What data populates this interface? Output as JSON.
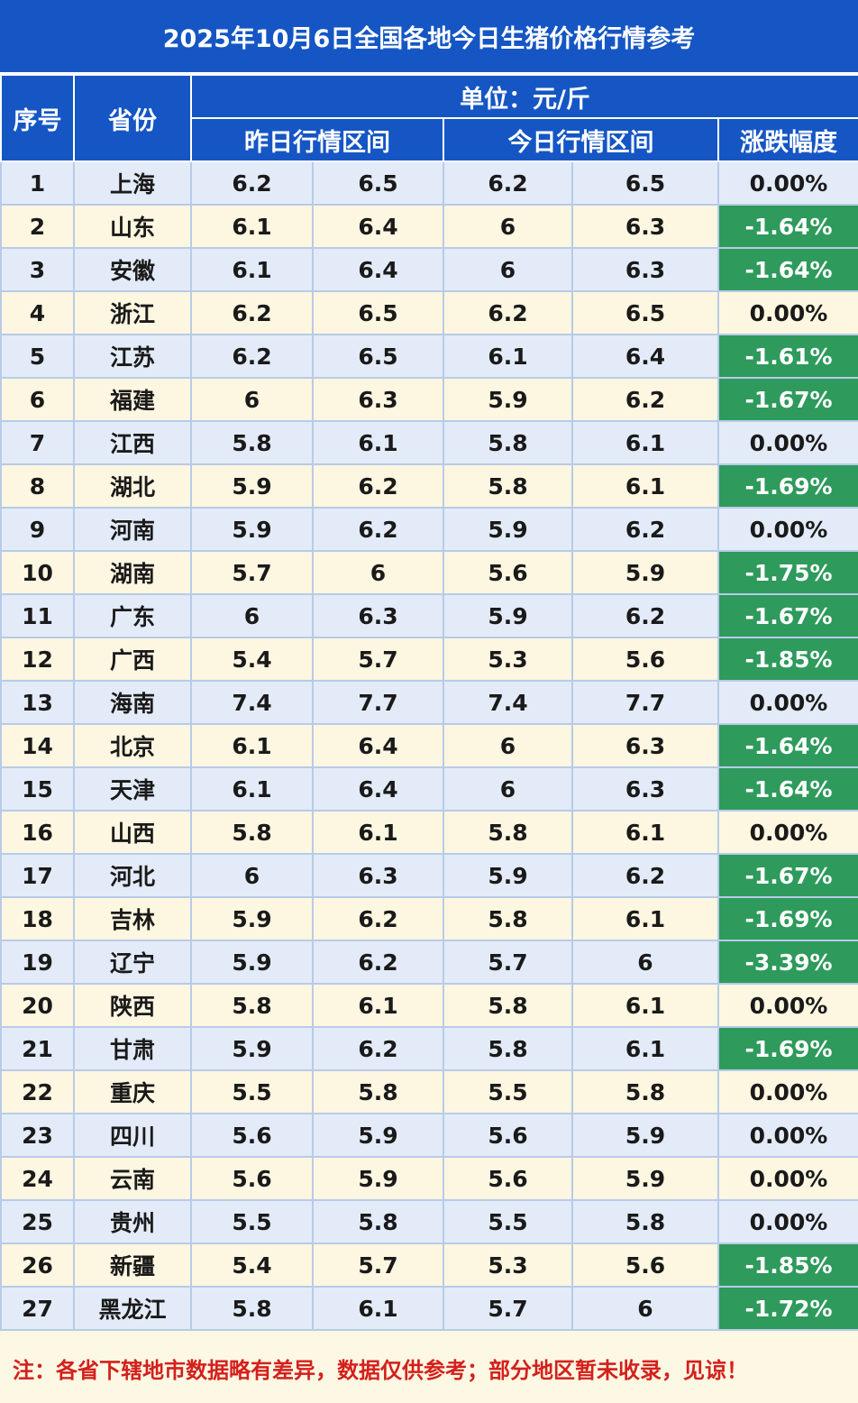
{
  "title": "2025年10月6日全国各地今日生猪价格行情参考",
  "header": {
    "seq": "序号",
    "province": "省份",
    "unit": "单位：元/斤",
    "yesterday": "昨日行情区间",
    "today": "今日行情区间",
    "change": "涨跌幅度"
  },
  "colors": {
    "header_bg": "#1556c4",
    "down_bg": "#2e9a5c",
    "note_text": "#d4201c"
  },
  "rows": [
    {
      "seq": "1",
      "province": "上海",
      "y_low": "6.2",
      "y_high": "6.5",
      "t_low": "6.2",
      "t_high": "6.5",
      "change": "0.00%"
    },
    {
      "seq": "2",
      "province": "山东",
      "y_low": "6.1",
      "y_high": "6.4",
      "t_low": "6",
      "t_high": "6.3",
      "change": "-1.64%"
    },
    {
      "seq": "3",
      "province": "安徽",
      "y_low": "6.1",
      "y_high": "6.4",
      "t_low": "6",
      "t_high": "6.3",
      "change": "-1.64%"
    },
    {
      "seq": "4",
      "province": "浙江",
      "y_low": "6.2",
      "y_high": "6.5",
      "t_low": "6.2",
      "t_high": "6.5",
      "change": "0.00%"
    },
    {
      "seq": "5",
      "province": "江苏",
      "y_low": "6.2",
      "y_high": "6.5",
      "t_low": "6.1",
      "t_high": "6.4",
      "change": "-1.61%"
    },
    {
      "seq": "6",
      "province": "福建",
      "y_low": "6",
      "y_high": "6.3",
      "t_low": "5.9",
      "t_high": "6.2",
      "change": "-1.67%"
    },
    {
      "seq": "7",
      "province": "江西",
      "y_low": "5.8",
      "y_high": "6.1",
      "t_low": "5.8",
      "t_high": "6.1",
      "change": "0.00%"
    },
    {
      "seq": "8",
      "province": "湖北",
      "y_low": "5.9",
      "y_high": "6.2",
      "t_low": "5.8",
      "t_high": "6.1",
      "change": "-1.69%"
    },
    {
      "seq": "9",
      "province": "河南",
      "y_low": "5.9",
      "y_high": "6.2",
      "t_low": "5.9",
      "t_high": "6.2",
      "change": "0.00%"
    },
    {
      "seq": "10",
      "province": "湖南",
      "y_low": "5.7",
      "y_high": "6",
      "t_low": "5.6",
      "t_high": "5.9",
      "change": "-1.75%"
    },
    {
      "seq": "11",
      "province": "广东",
      "y_low": "6",
      "y_high": "6.3",
      "t_low": "5.9",
      "t_high": "6.2",
      "change": "-1.67%"
    },
    {
      "seq": "12",
      "province": "广西",
      "y_low": "5.4",
      "y_high": "5.7",
      "t_low": "5.3",
      "t_high": "5.6",
      "change": "-1.85%"
    },
    {
      "seq": "13",
      "province": "海南",
      "y_low": "7.4",
      "y_high": "7.7",
      "t_low": "7.4",
      "t_high": "7.7",
      "change": "0.00%"
    },
    {
      "seq": "14",
      "province": "北京",
      "y_low": "6.1",
      "y_high": "6.4",
      "t_low": "6",
      "t_high": "6.3",
      "change": "-1.64%"
    },
    {
      "seq": "15",
      "province": "天津",
      "y_low": "6.1",
      "y_high": "6.4",
      "t_low": "6",
      "t_high": "6.3",
      "change": "-1.64%"
    },
    {
      "seq": "16",
      "province": "山西",
      "y_low": "5.8",
      "y_high": "6.1",
      "t_low": "5.8",
      "t_high": "6.1",
      "change": "0.00%"
    },
    {
      "seq": "17",
      "province": "河北",
      "y_low": "6",
      "y_high": "6.3",
      "t_low": "5.9",
      "t_high": "6.2",
      "change": "-1.67%"
    },
    {
      "seq": "18",
      "province": "吉林",
      "y_low": "5.9",
      "y_high": "6.2",
      "t_low": "5.8",
      "t_high": "6.1",
      "change": "-1.69%"
    },
    {
      "seq": "19",
      "province": "辽宁",
      "y_low": "5.9",
      "y_high": "6.2",
      "t_low": "5.7",
      "t_high": "6",
      "change": "-3.39%"
    },
    {
      "seq": "20",
      "province": "陕西",
      "y_low": "5.8",
      "y_high": "6.1",
      "t_low": "5.8",
      "t_high": "6.1",
      "change": "0.00%"
    },
    {
      "seq": "21",
      "province": "甘肃",
      "y_low": "5.9",
      "y_high": "6.2",
      "t_low": "5.8",
      "t_high": "6.1",
      "change": "-1.69%"
    },
    {
      "seq": "22",
      "province": "重庆",
      "y_low": "5.5",
      "y_high": "5.8",
      "t_low": "5.5",
      "t_high": "5.8",
      "change": "0.00%"
    },
    {
      "seq": "23",
      "province": "四川",
      "y_low": "5.6",
      "y_high": "5.9",
      "t_low": "5.6",
      "t_high": "5.9",
      "change": "0.00%"
    },
    {
      "seq": "24",
      "province": "云南",
      "y_low": "5.6",
      "y_high": "5.9",
      "t_low": "5.6",
      "t_high": "5.9",
      "change": "0.00%"
    },
    {
      "seq": "25",
      "province": "贵州",
      "y_low": "5.5",
      "y_high": "5.8",
      "t_low": "5.5",
      "t_high": "5.8",
      "change": "0.00%"
    },
    {
      "seq": "26",
      "province": "新疆",
      "y_low": "5.4",
      "y_high": "5.7",
      "t_low": "5.3",
      "t_high": "5.6",
      "change": "-1.85%"
    },
    {
      "seq": "27",
      "province": "黑龙江",
      "y_low": "5.8",
      "y_high": "6.1",
      "t_low": "5.7",
      "t_high": "6",
      "change": "-1.72%"
    }
  ],
  "note": "注：各省下辖地市数据略有差异，数据仅供参考；部分地区暂未收录，见谅！"
}
